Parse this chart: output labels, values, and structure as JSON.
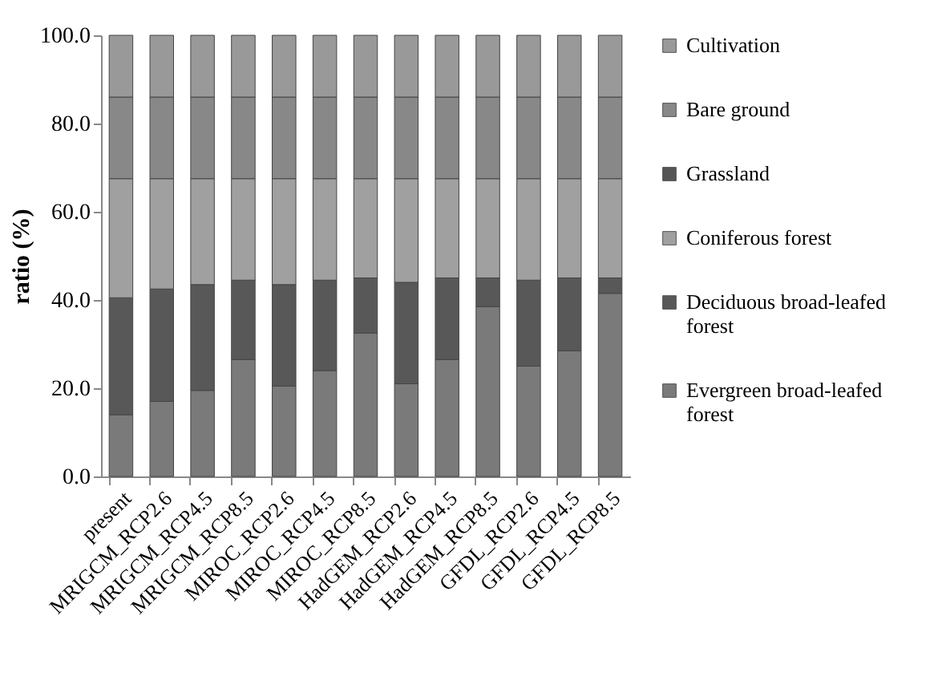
{
  "chart_data": {
    "type": "bar",
    "stacked": true,
    "ylabel": "ratio (%)",
    "categories": [
      "present",
      "MRIGCM_RCP2.6",
      "MRIGCM_RCP4.5",
      "MRIGCM_RCP8.5",
      "MIROC_RCP2.6",
      "MIROC_RCP4.5",
      "MIROC_RCP8.5",
      "HadGEM_RCP2.6",
      "HadGEM_RCP4.5",
      "HadGEM_RCP8.5",
      "GFDL_RCP2.6",
      "GFDL_RCP4.5",
      "GFDL_RCP8.5"
    ],
    "series": [
      {
        "name": "Evergreen broad-leafed forest",
        "color": "#7a7a7a",
        "values": [
          14,
          17,
          19.5,
          26.5,
          20.5,
          24,
          32.5,
          21,
          26.5,
          38.5,
          25,
          28.5,
          41.5
        ]
      },
      {
        "name": "Deciduous broad-leafed forest",
        "color": "#585858",
        "values": [
          26.5,
          25.5,
          24,
          18,
          23,
          20.5,
          12.5,
          23,
          18.5,
          6.5,
          19.5,
          16.5,
          3.5
        ]
      },
      {
        "name": "Coniferous forest",
        "color": "#a0a0a0",
        "values": [
          27,
          25,
          24,
          23,
          24,
          23,
          22.5,
          23.5,
          22.5,
          22.5,
          23,
          22.5,
          22.5
        ]
      },
      {
        "name": "Grassland",
        "color": "#555555",
        "values": [
          null,
          null,
          null,
          null,
          null,
          null,
          null,
          null,
          null,
          null,
          null,
          null,
          null
        ]
      },
      {
        "name": "Bare ground",
        "color": "#888888",
        "values": [
          18.5,
          18.5,
          18.5,
          18.5,
          18.5,
          18.5,
          18.5,
          18.5,
          18.5,
          18.5,
          18.5,
          18.5,
          18.5
        ]
      },
      {
        "name": "Cultivation",
        "color": "#999999",
        "values": [
          14,
          14,
          14,
          14,
          14,
          14,
          14,
          14,
          14,
          14,
          14,
          14,
          14
        ]
      }
    ],
    "ylim": [
      0,
      100
    ],
    "yticks": [
      {
        "value": 0,
        "label": "0.0"
      },
      {
        "value": 20,
        "label": "20.0"
      },
      {
        "value": 40,
        "label": "40.0"
      },
      {
        "value": 60,
        "label": "60.0"
      },
      {
        "value": 80,
        "label": "80.0"
      },
      {
        "value": 100,
        "label": "100.0"
      }
    ],
    "legend": "right"
  }
}
